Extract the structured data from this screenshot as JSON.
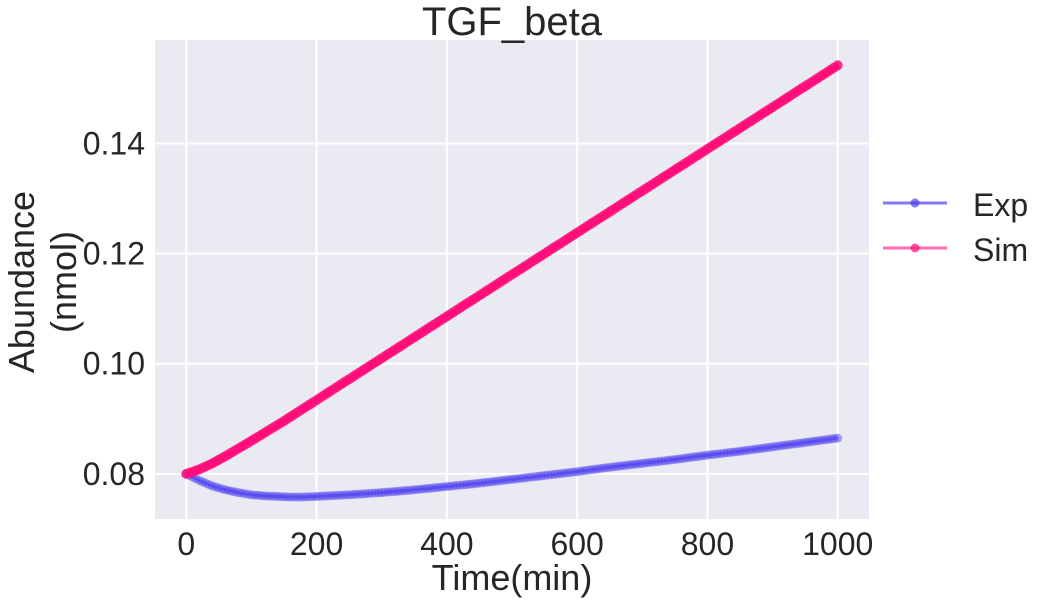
{
  "chart_data": {
    "type": "line",
    "title": "TGF_beta",
    "xlabel": "Time(min)",
    "ylabel_lines": [
      "Abundance",
      "(nmol)"
    ],
    "xlim": [
      -48,
      1048
    ],
    "ylim": [
      0.0718,
      0.1588
    ],
    "xticks": [
      0,
      200,
      400,
      600,
      800,
      1000
    ],
    "xtick_labels": [
      "0",
      "200",
      "400",
      "600",
      "800",
      "1000"
    ],
    "yticks": [
      0.08,
      0.1,
      0.12,
      0.14
    ],
    "ytick_labels": [
      "0.08",
      "0.10",
      "0.12",
      "0.14"
    ],
    "grid": true,
    "legend_position": "outside-right",
    "background": "#eaeaf2",
    "series": [
      {
        "name": "Exp",
        "color": "#4b3df0",
        "marker": "circle",
        "x": [
          0,
          20,
          40,
          60,
          80,
          100,
          120,
          140,
          160,
          180,
          200,
          250,
          300,
          350,
          400,
          450,
          500,
          550,
          600,
          650,
          700,
          750,
          800,
          850,
          900,
          950,
          1000
        ],
        "y": [
          0.08,
          0.0788,
          0.0778,
          0.0771,
          0.0766,
          0.0762,
          0.076,
          0.0759,
          0.0758,
          0.0758,
          0.0759,
          0.0762,
          0.0766,
          0.0771,
          0.0777,
          0.0783,
          0.079,
          0.0797,
          0.0804,
          0.0812,
          0.0819,
          0.0826,
          0.0834,
          0.0841,
          0.0849,
          0.0857,
          0.0865
        ]
      },
      {
        "name": "Sim",
        "color": "#ff0d78",
        "marker": "circle",
        "x": [
          0,
          20,
          40,
          60,
          80,
          100,
          150,
          200,
          300,
          400,
          500,
          600,
          700,
          800,
          900,
          1000
        ],
        "y": [
          0.08,
          0.0808,
          0.0819,
          0.0832,
          0.0846,
          0.086,
          0.0896,
          0.0934,
          0.101,
          0.1086,
          0.1162,
          0.1238,
          0.1314,
          0.139,
          0.1466,
          0.1542
        ]
      }
    ]
  }
}
